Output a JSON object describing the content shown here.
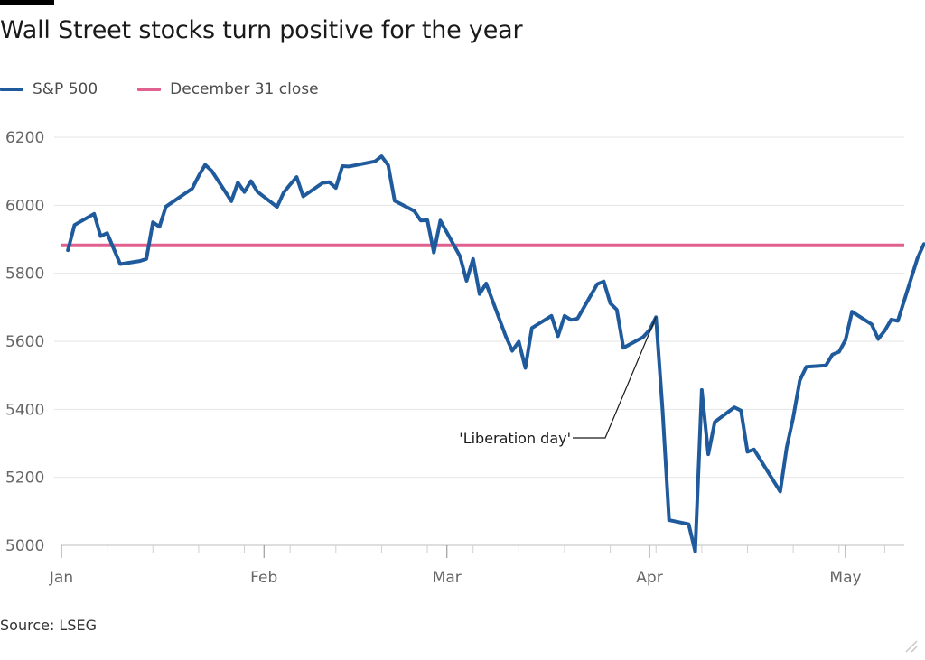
{
  "title": "Wall Street stocks turn positive for the year",
  "source": "Source: LSEG",
  "colors": {
    "sp500": "#1f5b9c",
    "dec31": "#e0608e",
    "grid": "#e6e6e6",
    "axis": "#666666"
  },
  "chart_data": {
    "type": "line",
    "title": "Wall Street stocks turn positive for the year",
    "xlabel": "",
    "ylabel": "",
    "ylim": [
      5000,
      6200
    ],
    "yticks": [
      6200,
      6000,
      5800,
      5600,
      5400,
      5200,
      5000
    ],
    "xticks": [
      "Jan",
      "Feb",
      "Mar",
      "Apr",
      "May"
    ],
    "legend_position": "top-left",
    "grid": true,
    "series": [
      {
        "name": "S&P 500",
        "x": [
          "2025-01-02",
          "2025-01-03",
          "2025-01-06",
          "2025-01-07",
          "2025-01-08",
          "2025-01-10",
          "2025-01-13",
          "2025-01-14",
          "2025-01-15",
          "2025-01-16",
          "2025-01-17",
          "2025-01-21",
          "2025-01-22",
          "2025-01-23",
          "2025-01-24",
          "2025-01-27",
          "2025-01-28",
          "2025-01-29",
          "2025-01-30",
          "2025-01-31",
          "2025-02-03",
          "2025-02-04",
          "2025-02-05",
          "2025-02-06",
          "2025-02-07",
          "2025-02-10",
          "2025-02-11",
          "2025-02-12",
          "2025-02-13",
          "2025-02-14",
          "2025-02-18",
          "2025-02-19",
          "2025-02-20",
          "2025-02-21",
          "2025-02-24",
          "2025-02-25",
          "2025-02-26",
          "2025-02-27",
          "2025-02-28",
          "2025-03-03",
          "2025-03-04",
          "2025-03-05",
          "2025-03-06",
          "2025-03-07",
          "2025-03-10",
          "2025-03-11",
          "2025-03-12",
          "2025-03-13",
          "2025-03-14",
          "2025-03-17",
          "2025-03-18",
          "2025-03-19",
          "2025-03-20",
          "2025-03-21",
          "2025-03-24",
          "2025-03-25",
          "2025-03-26",
          "2025-03-27",
          "2025-03-28",
          "2025-03-31",
          "2025-04-01",
          "2025-04-02",
          "2025-04-03",
          "2025-04-04",
          "2025-04-07",
          "2025-04-08",
          "2025-04-09",
          "2025-04-10",
          "2025-04-11",
          "2025-04-14",
          "2025-04-15",
          "2025-04-16",
          "2025-04-17",
          "2025-04-21",
          "2025-04-22",
          "2025-04-23",
          "2025-04-24",
          "2025-04-25",
          "2025-04-28",
          "2025-04-29",
          "2025-04-30",
          "2025-05-01",
          "2025-05-02",
          "2025-05-05",
          "2025-05-06",
          "2025-05-07",
          "2025-05-08",
          "2025-05-09",
          "2025-05-12",
          "2025-05-13"
        ],
        "values": [
          5868,
          5942,
          5975,
          5909,
          5918,
          5827,
          5836,
          5842,
          5950,
          5937,
          5996,
          6049,
          6086,
          6119,
          6101,
          6012,
          6067,
          6039,
          6071,
          6040,
          5995,
          6037,
          6061,
          6083,
          6026,
          6066,
          6068,
          6051,
          6115,
          6114,
          6129,
          6144,
          6118,
          6013,
          5983,
          5955,
          5956,
          5861,
          5955,
          5850,
          5778,
          5842,
          5739,
          5770,
          5615,
          5572,
          5599,
          5522,
          5639,
          5675,
          5615,
          5675,
          5663,
          5667,
          5768,
          5776,
          5712,
          5693,
          5581,
          5612,
          5633,
          5671,
          5397,
          5074,
          5062,
          4982,
          5457,
          5268,
          5363,
          5406,
          5396,
          5275,
          5282,
          5158,
          5288,
          5376,
          5485,
          5525,
          5529,
          5561,
          5569,
          5604,
          5687,
          5650,
          5607,
          5631,
          5664,
          5660,
          5844,
          5886
        ]
      },
      {
        "name": "December 31 close",
        "value": 5882
      }
    ],
    "annotations": [
      {
        "text": "'Liberation day'",
        "x": "2025-04-02",
        "y": 5671
      }
    ]
  }
}
